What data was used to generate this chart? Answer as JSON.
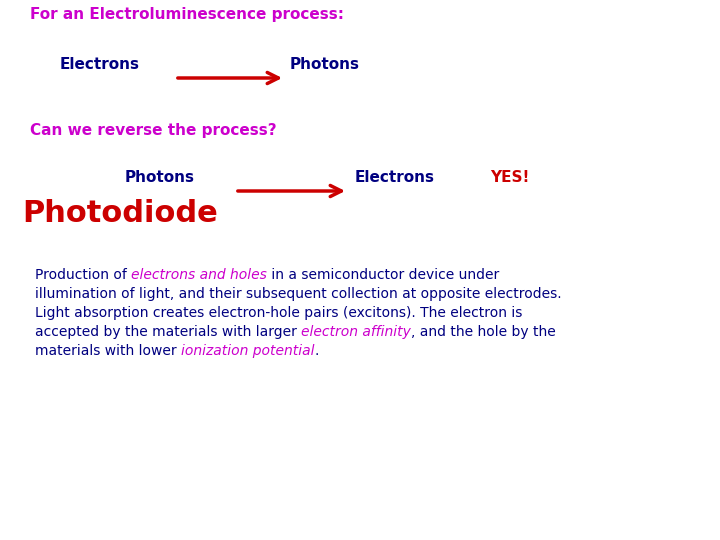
{
  "background_color": "#ffffff",
  "title_text": "For an Electroluminescence process:",
  "title_color": "#cc00cc",
  "title_fontsize": 11,
  "electrons_label": "Electrons",
  "photons_label": "Photons",
  "label_color": "#000080",
  "label_fontsize": 11,
  "arrow_color": "#cc0000",
  "question_text": "Can we reverse the process?",
  "question_color": "#cc00cc",
  "question_fontsize": 11,
  "photons2_label": "Photons",
  "electrons2_label": "Electrons",
  "yes_text": "YES!",
  "yes_color": "#cc0000",
  "yes_fontsize": 11,
  "photodiode_text": "Photodiode",
  "photodiode_color": "#cc0000",
  "photodiode_fontsize": 22,
  "body_color": "#000080",
  "body_fontsize": 10,
  "highlight_color": "#cc00cc",
  "body_line1_a": "Production of ",
  "body_highlight1": "electrons and holes",
  "body_line1_b": " in a semiconductor device under",
  "body_line2": "illumination of light, and their subsequent collection at opposite electrodes.",
  "body_line3": "Light absorption creates electron-hole pairs (excitons). The electron is",
  "body_line4a": "accepted by the materials with larger ",
  "body_highlight4": "electron affinity",
  "body_line4b": ", and the hole by the",
  "body_line5a": "materials with lower ",
  "body_highlight5": "ionization potential",
  "body_line5b": "."
}
